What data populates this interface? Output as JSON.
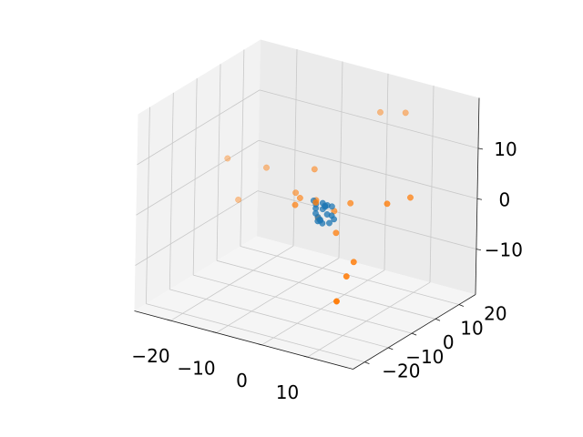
{
  "chart_data": {
    "type": "scatter",
    "projection": "3d",
    "title": "",
    "xlabel": "",
    "ylabel": "",
    "zlabel": "",
    "xlim": [
      -28,
      20
    ],
    "ylim": [
      -25,
      27
    ],
    "zlim": [
      -19,
      20
    ],
    "xticks": [
      -20,
      -10,
      0,
      10
    ],
    "yticks": [
      -20,
      -10,
      0,
      10,
      20
    ],
    "zticks": [
      -10,
      0,
      10
    ],
    "grid": true,
    "legend": "none",
    "series": [
      {
        "color": "#1f77b4",
        "points": [
          [
            -1,
            -1,
            1
          ],
          [
            0,
            0,
            2
          ],
          [
            1,
            0,
            0
          ],
          [
            -2,
            1,
            1
          ],
          [
            0,
            -1,
            -1
          ],
          [
            -1,
            1,
            -2
          ],
          [
            0,
            1,
            1
          ],
          [
            1,
            -1,
            2
          ],
          [
            -1,
            -1,
            0
          ],
          [
            2,
            0,
            0
          ],
          [
            0,
            2,
            1
          ],
          [
            -2,
            0,
            2
          ],
          [
            1,
            1,
            -2
          ],
          [
            -1,
            0,
            -1
          ],
          [
            0,
            -2,
            -1
          ],
          [
            1,
            2,
            1
          ],
          [
            -1,
            2,
            0
          ],
          [
            0,
            0,
            -2
          ],
          [
            2,
            1,
            -1
          ]
        ]
      },
      {
        "color": "#ff7f0e",
        "points": [
          [
            -20,
            3,
            -3
          ],
          [
            -22,
            2,
            5
          ],
          [
            -15,
            5,
            4
          ],
          [
            1,
            22,
            14
          ],
          [
            5,
            25,
            14
          ],
          [
            10,
            8,
            2
          ],
          [
            12,
            14,
            2
          ],
          [
            3,
            6,
            1
          ],
          [
            -3,
            3,
            1
          ],
          [
            -8,
            4,
            1
          ],
          [
            -6,
            2,
            1
          ],
          [
            0,
            5,
            -1
          ],
          [
            0,
            -3,
            3
          ],
          [
            -5,
            -2,
            1
          ],
          [
            -2,
            2,
            -2
          ],
          [
            7,
            0,
            -8
          ],
          [
            7,
            -3,
            -10
          ],
          [
            8,
            -9,
            -13
          ],
          [
            -6,
            8,
            5
          ],
          [
            2,
            2,
            -4
          ]
        ]
      }
    ]
  }
}
